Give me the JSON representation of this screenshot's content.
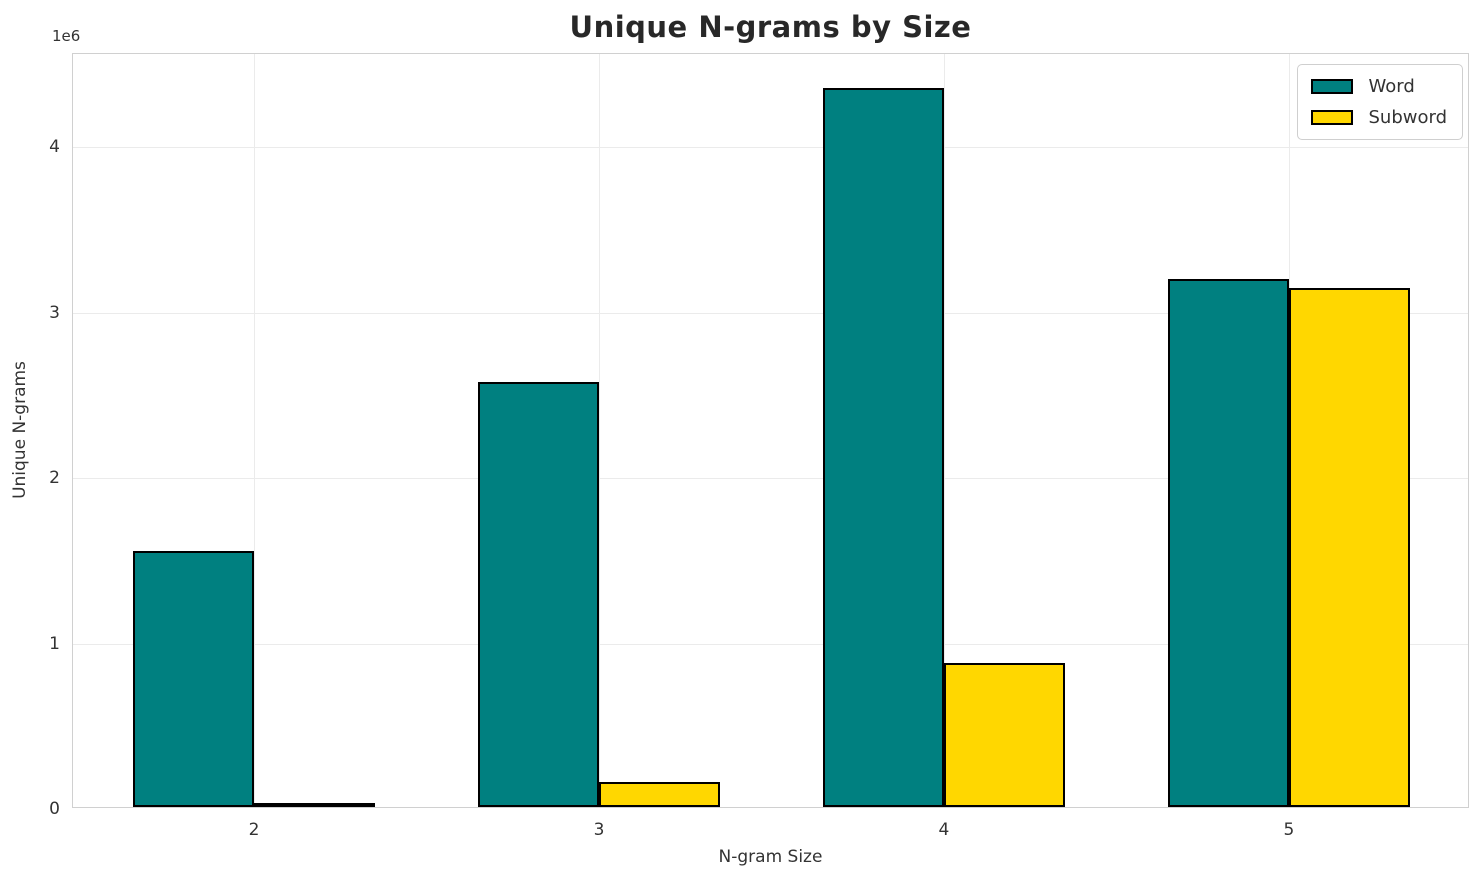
{
  "chart_data": {
    "type": "bar",
    "title": "Unique N-grams by Size",
    "xlabel": "N-gram Size",
    "ylabel": "Unique N-grams",
    "offset_label": "1e6",
    "categories": [
      "2",
      "3",
      "4",
      "5"
    ],
    "series": [
      {
        "name": "Word",
        "color": "#008080",
        "values": [
          1550000,
          2570000,
          4350000,
          3190000
        ]
      },
      {
        "name": "Subword",
        "color": "#FFD700",
        "values": [
          25000,
          150000,
          870000,
          3140000
        ]
      }
    ],
    "bar_edge_color": "#000000",
    "bar_width_fraction": 0.35,
    "xlim": [
      -0.525,
      3.525
    ],
    "ylim": [
      0,
      4565000
    ],
    "y_ticks": [
      {
        "value": 0,
        "label": "0"
      },
      {
        "value": 1000000,
        "label": "1"
      },
      {
        "value": 2000000,
        "label": "2"
      },
      {
        "value": 3000000,
        "label": "3"
      },
      {
        "value": 4000000,
        "label": "4"
      }
    ],
    "grid": true,
    "grid_color": "#ebebeb",
    "legend_position": "upper right"
  }
}
